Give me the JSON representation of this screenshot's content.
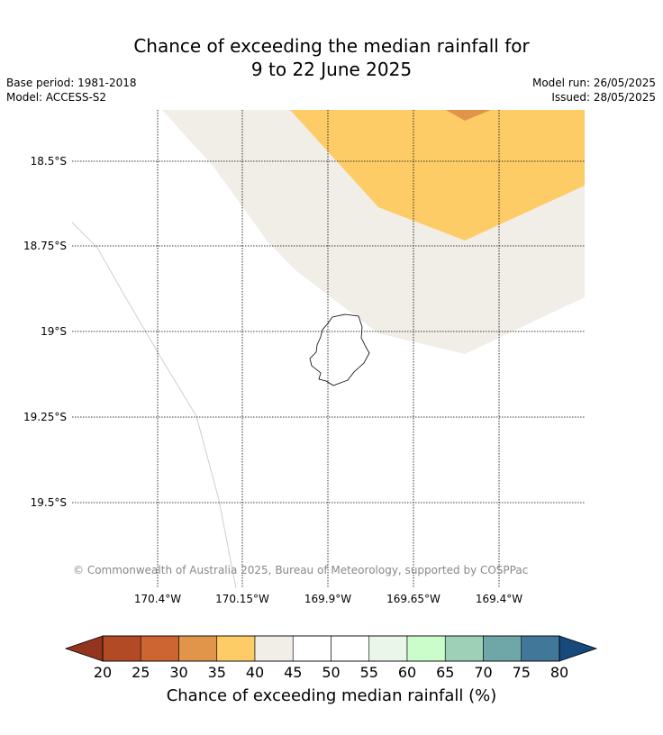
{
  "title": {
    "line1": "Chance of exceeding the median rainfall for",
    "line2": "9 to 22 June 2025"
  },
  "meta": {
    "base_period": "Base period: 1981-2018",
    "model": "Model: ACCESS-S2",
    "model_run": "Model run: 26/05/2025",
    "issued": "Issued: 28/05/2025"
  },
  "map": {
    "lat_labels": [
      "18.5°S",
      "18.75°S",
      "19°S",
      "19.25°S",
      "19.5°S"
    ],
    "lon_labels": [
      "170.4°W",
      "170.15°W",
      "169.9°W",
      "169.65°W",
      "169.4°W"
    ],
    "copyright": "© Commonwealth of Australia 2025, Bureau of Meteorology, supported by COSPPac",
    "colors": {
      "band_40_45": "#f1ede7",
      "band_35_40": "#fdcc67",
      "band_30_35": "#e0954a"
    }
  },
  "colorbar": {
    "label": "Chance of exceeding median rainfall (%)",
    "ticks": [
      "20",
      "25",
      "30",
      "35",
      "40",
      "45",
      "50",
      "55",
      "60",
      "65",
      "70",
      "75",
      "80"
    ],
    "under_color": "#93341f",
    "over_color": "#17497a",
    "colors": [
      "#b24a26",
      "#cc6532",
      "#e0954a",
      "#fdcc67",
      "#f1ede7",
      "#ffffff",
      "#ffffff",
      "#e9f6e9",
      "#cbfdcb",
      "#9dd0b7",
      "#6fa7a9",
      "#41789a"
    ]
  }
}
